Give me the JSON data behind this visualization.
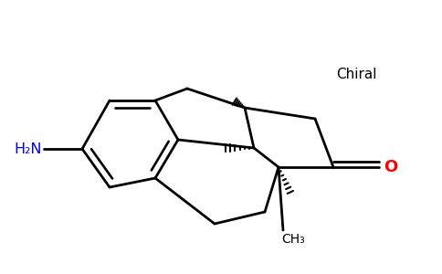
{
  "background_color": "#ffffff",
  "h2n_label": "H₂N",
  "h2n_color": "#0000ff",
  "ch3_label": "CH₃",
  "ch3_color": "#000000",
  "o_label": "O",
  "o_color": "#ff0000",
  "chiral_label": "Chiral",
  "chiral_color": "#000000",
  "line_color": "#000000",
  "line_width": 2.0,
  "figsize": [
    4.84,
    3.0
  ],
  "dpi": 100,
  "xlim": [
    0,
    484
  ],
  "ylim": [
    0,
    300
  ]
}
